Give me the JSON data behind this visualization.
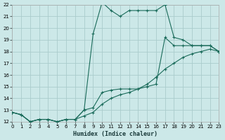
{
  "xlabel": "Humidex (Indice chaleur)",
  "bg_color": "#cce8e8",
  "grid_color": "#aacccc",
  "line_color": "#1a6b5a",
  "xlim": [
    0,
    23
  ],
  "ylim": [
    12,
    22
  ],
  "yticks": [
    12,
    13,
    14,
    15,
    16,
    17,
    18,
    19,
    20,
    21,
    22
  ],
  "xticks": [
    0,
    1,
    2,
    3,
    4,
    5,
    6,
    7,
    8,
    9,
    10,
    11,
    12,
    13,
    14,
    15,
    16,
    17,
    18,
    19,
    20,
    21,
    22,
    23
  ],
  "curve1_x": [
    0,
    1,
    2,
    3,
    4,
    5,
    6,
    7,
    8,
    9,
    10,
    11,
    12,
    13,
    14,
    15,
    16,
    17,
    18,
    19,
    20,
    21,
    22,
    23
  ],
  "curve1_y": [
    12.8,
    12.6,
    12.0,
    12.2,
    12.2,
    12.0,
    12.2,
    12.2,
    13.0,
    19.5,
    22.2,
    21.5,
    21.0,
    21.5,
    21.5,
    21.5,
    21.5,
    22.0,
    19.2,
    19.0,
    18.5,
    18.5,
    18.5,
    18.0
  ],
  "curve2_x": [
    0,
    1,
    2,
    3,
    4,
    5,
    6,
    7,
    8,
    9,
    10,
    11,
    12,
    13,
    14,
    15,
    16,
    17,
    18,
    19,
    20,
    21,
    22,
    23
  ],
  "curve2_y": [
    12.8,
    12.6,
    12.0,
    12.2,
    12.2,
    12.0,
    12.2,
    12.2,
    13.0,
    13.2,
    14.5,
    14.7,
    14.8,
    14.8,
    14.8,
    15.0,
    15.2,
    19.2,
    18.5,
    18.5,
    18.5,
    18.5,
    18.5,
    18.0
  ],
  "curve3_x": [
    0,
    1,
    2,
    3,
    4,
    5,
    6,
    7,
    8,
    9,
    10,
    11,
    12,
    13,
    14,
    15,
    16,
    17,
    18,
    19,
    20,
    21,
    22,
    23
  ],
  "curve3_y": [
    12.8,
    12.6,
    12.0,
    12.2,
    12.2,
    12.0,
    12.2,
    12.2,
    12.5,
    12.8,
    13.5,
    14.0,
    14.3,
    14.5,
    14.8,
    15.2,
    15.8,
    16.5,
    17.0,
    17.5,
    17.8,
    18.0,
    18.2,
    18.0
  ]
}
